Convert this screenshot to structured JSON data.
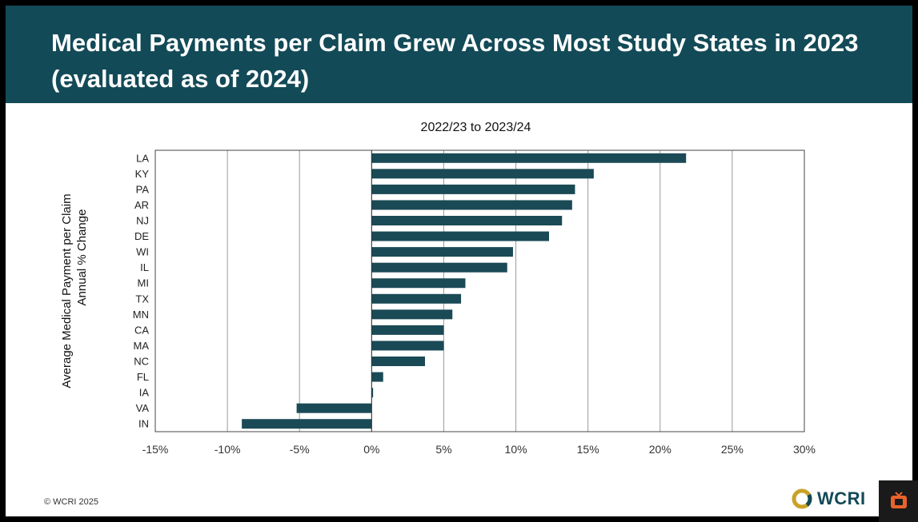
{
  "slide": {
    "title": "Medical Payments per Claim Grew Across Most Study States in 2023 (evaluated as of 2024)",
    "copyright": "© WCRI 2025",
    "logo_text": "WCRI"
  },
  "colors": {
    "header": "#134a57",
    "bar": "#1a4a55",
    "accent_logo": "#c9a227",
    "overlay_icon": "#e8632b"
  },
  "icons": {
    "logo": "wcri-ring-icon",
    "overlay": "live-tv-icon"
  },
  "chart_data": {
    "type": "bar",
    "orientation": "horizontal",
    "title": "2022/23 to 2023/24",
    "ylabel_lines": [
      "Average Medical Payment per Claim",
      "Annual % Change"
    ],
    "categories": [
      "LA",
      "KY",
      "PA",
      "AR",
      "NJ",
      "DE",
      "WI",
      "IL",
      "MI",
      "TX",
      "MN",
      "CA",
      "MA",
      "NC",
      "FL",
      "IA",
      "VA",
      "IN"
    ],
    "values": [
      21.8,
      15.4,
      14.1,
      13.9,
      13.2,
      12.3,
      9.8,
      9.4,
      6.5,
      6.2,
      5.6,
      5.0,
      5.0,
      3.7,
      0.8,
      0.1,
      -5.2,
      -9.0
    ],
    "xlim": [
      -15,
      30
    ],
    "xticks": [
      -15,
      -10,
      -5,
      0,
      5,
      10,
      15,
      20,
      25,
      30
    ],
    "xtick_labels": [
      "-15%",
      "-10%",
      "-5%",
      "0%",
      "5%",
      "10%",
      "15%",
      "20%",
      "25%",
      "30%"
    ],
    "grid": "vertical"
  }
}
